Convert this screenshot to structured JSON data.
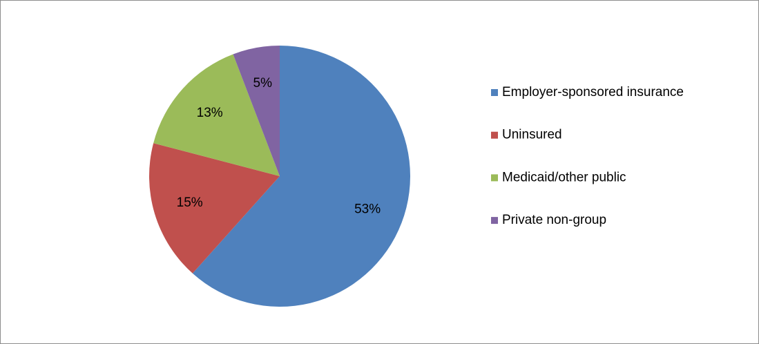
{
  "chart_data": {
    "type": "pie",
    "categories": [
      "Employer-sponsored insurance",
      "Uninsured",
      "Medicaid/other public",
      "Private non-group"
    ],
    "values": [
      53,
      15,
      13,
      5
    ],
    "value_labels": [
      "53%",
      "15%",
      "13%",
      "5%"
    ],
    "colors": [
      "#4f81bd",
      "#c0504d",
      "#9bbb59",
      "#8064a2"
    ],
    "legend": "right"
  }
}
